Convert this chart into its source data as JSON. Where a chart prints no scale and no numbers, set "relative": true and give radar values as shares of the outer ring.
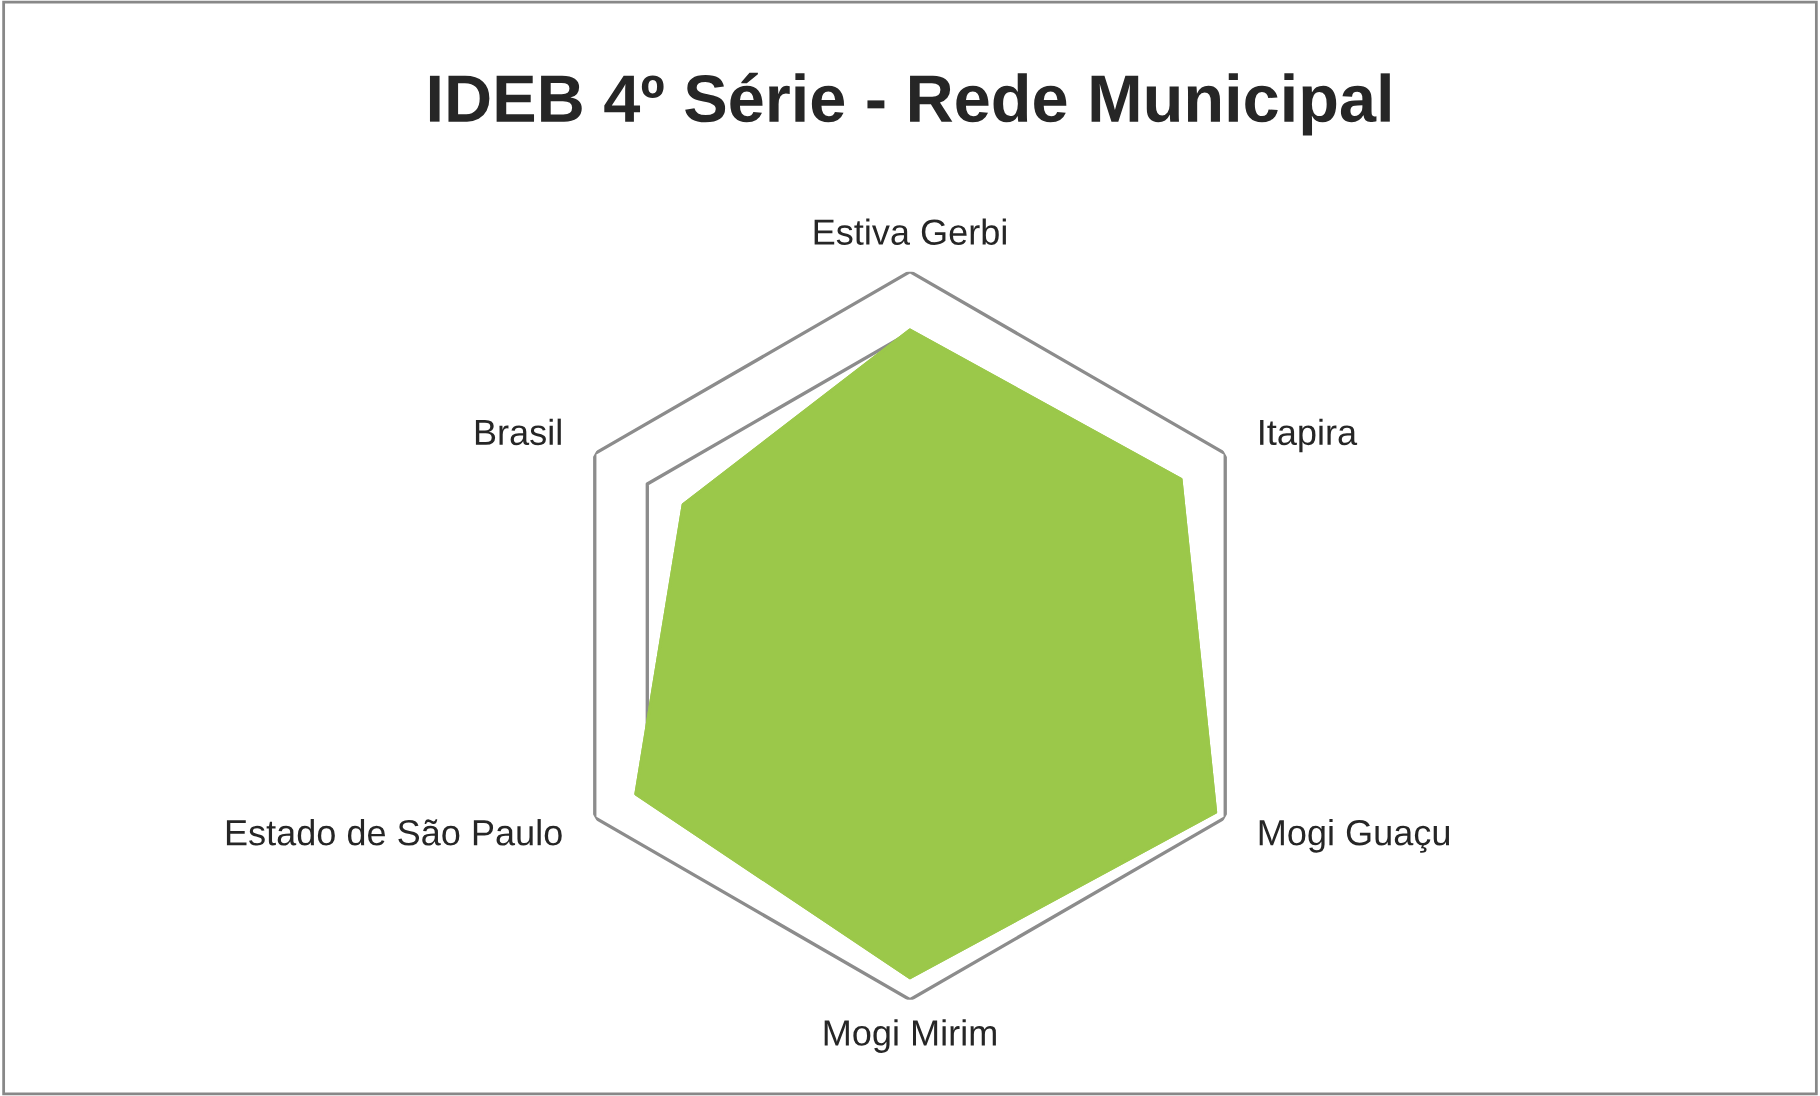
{
  "chart_data": {
    "type": "radar",
    "title": "IDEB 4º Série - Rede Municipal",
    "relative": true,
    "grid": true,
    "categories": [
      "Estiva Gerbi",
      "Itapira",
      "Mogi Guaçu",
      "Mogi Mirim",
      "Estado de São Paulo",
      "Brasil"
    ],
    "series": [
      {
        "color": "#9bc84a",
        "values": [
          0.84,
          0.86,
          0.97,
          0.94,
          0.87,
          0.72
        ]
      }
    ]
  }
}
